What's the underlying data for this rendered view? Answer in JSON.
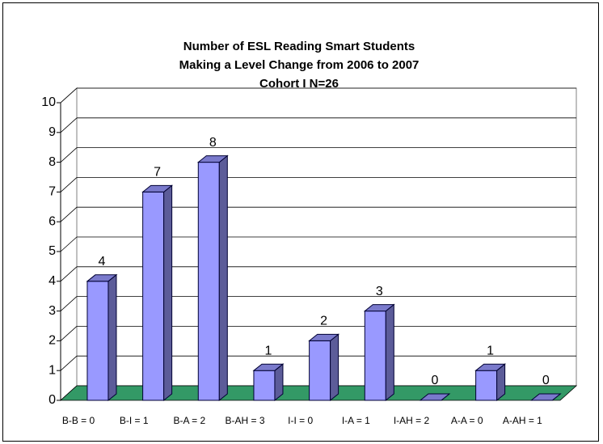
{
  "chart_data": {
    "type": "bar3d",
    "title": [
      "Number of ESL Reading Smart Students",
      "Making a Level Change from 2006 to 2007",
      "Cohort I N=26"
    ],
    "categories": [
      "B-B = 0",
      "B-I = 1",
      "B-A = 2",
      "B-AH = 3",
      "I-I = 0",
      "I-A = 1",
      "I-AH = 2",
      "A-A = 0",
      "A-AH = 1"
    ],
    "values": [
      4,
      7,
      8,
      1,
      2,
      3,
      0,
      1,
      0
    ],
    "color": "#9999ff",
    "floor_color": "#339966",
    "ylim": [
      0,
      10
    ],
    "yticks": [
      0,
      1,
      2,
      3,
      4,
      5,
      6,
      7,
      8,
      9,
      10
    ],
    "grid": true
  }
}
